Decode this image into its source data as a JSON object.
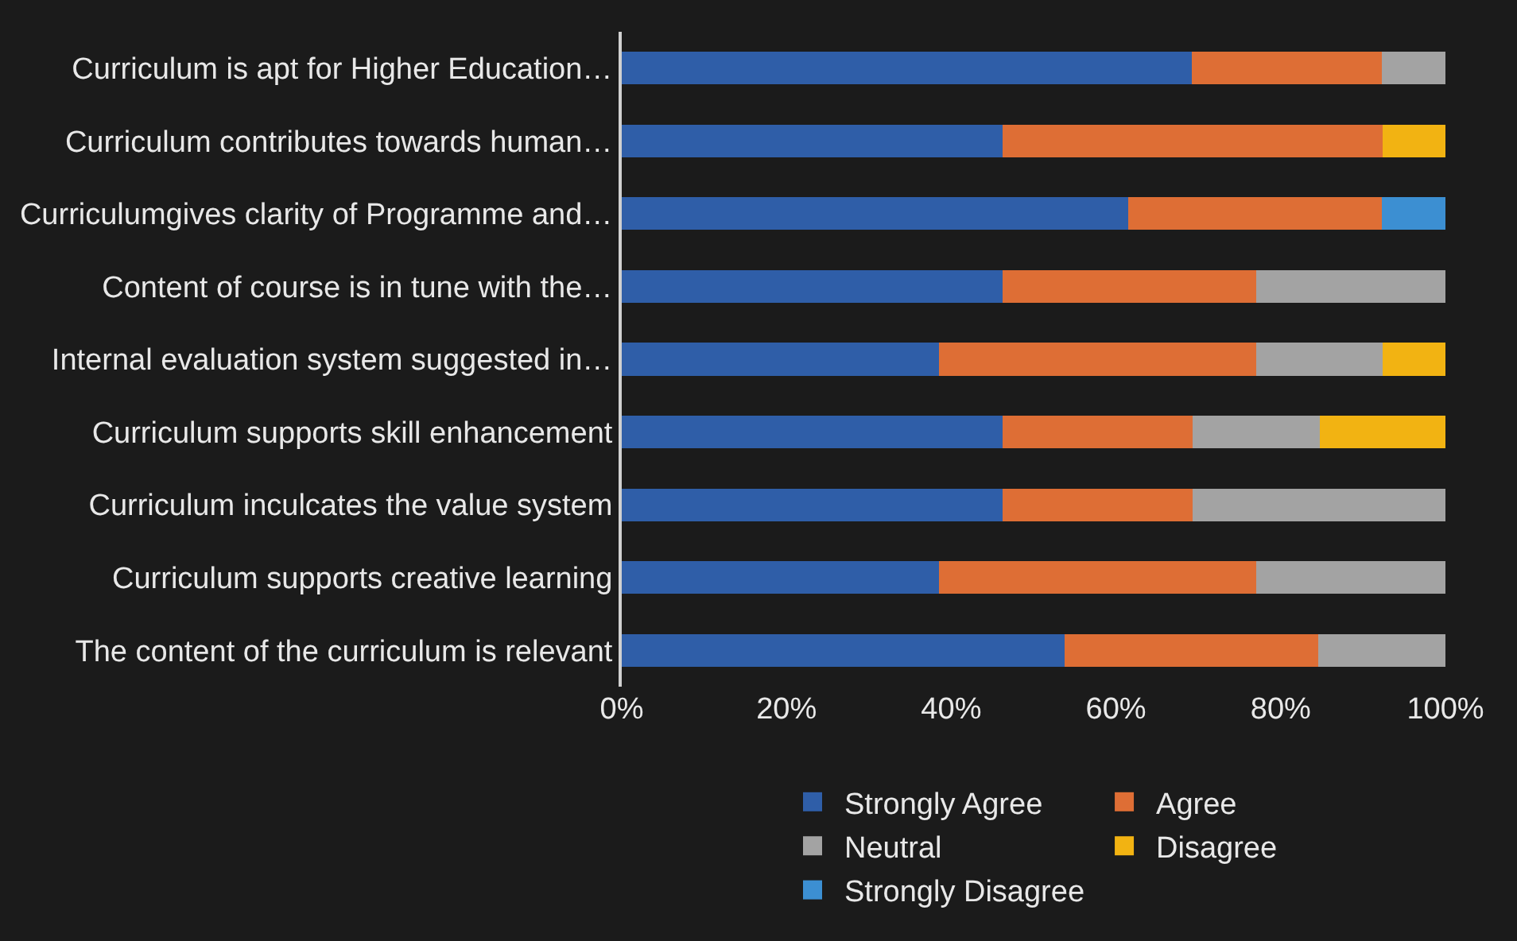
{
  "chart_data": {
    "type": "bar",
    "orientation": "horizontal",
    "stacked": true,
    "categories": [
      "Curriculum is apt for Higher Education…",
      "Curriculum contributes towards human…",
      "Curriculumgives clarity of Programme and…",
      "Content of course is in tune with the…",
      "Internal evaluation system suggested in…",
      "Curriculum supports skill enhancement",
      "Curriculum inculcates the value system",
      "Curriculum supports creative learning",
      "The content of the curriculum is relevant"
    ],
    "series": [
      {
        "name": "Strongly Agree",
        "color": "#2f5ea8",
        "values": [
          69.2,
          46.2,
          61.5,
          46.2,
          38.5,
          46.2,
          46.2,
          38.5,
          53.8
        ]
      },
      {
        "name": "Agree",
        "color": "#de6e35",
        "values": [
          23.1,
          46.2,
          30.8,
          30.8,
          38.5,
          23.1,
          23.1,
          38.5,
          30.8
        ]
      },
      {
        "name": "Neutral",
        "color": "#a3a3a3",
        "values": [
          7.7,
          null,
          null,
          23.1,
          15.4,
          15.4,
          30.8,
          23.1,
          15.4
        ]
      },
      {
        "name": "Disagree",
        "color": "#f2b312",
        "values": [
          null,
          7.7,
          null,
          null,
          7.7,
          15.4,
          null,
          null,
          null
        ]
      },
      {
        "name": "Strongly Disagree",
        "color": "#3c8fd2",
        "values": [
          null,
          null,
          7.7,
          null,
          null,
          null,
          null,
          null,
          null
        ]
      }
    ],
    "xlim": [
      0,
      100
    ],
    "xticks": [
      {
        "value": 0,
        "label": "0%"
      },
      {
        "value": 20,
        "label": "20%"
      },
      {
        "value": 40,
        "label": "40%"
      },
      {
        "value": 60,
        "label": "60%"
      },
      {
        "value": 80,
        "label": "80%"
      },
      {
        "value": 100,
        "label": "100%"
      }
    ],
    "grid": false,
    "legend": "bottom"
  }
}
